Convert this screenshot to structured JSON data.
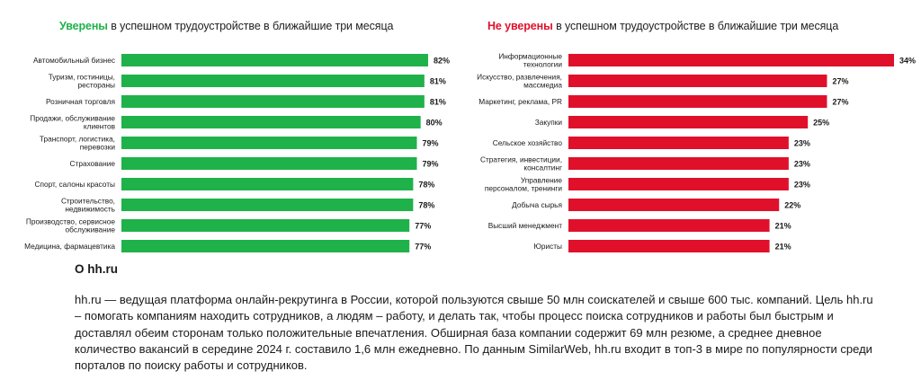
{
  "chart_data": [
    {
      "type": "bar",
      "orientation": "horizontal",
      "title_accent": "Уверены",
      "title_rest": "в успешном трудоустройстве в ближайшие три месяца",
      "categories": [
        [
          "Автомобильный бизнес"
        ],
        [
          "Туризм, гостиницы,",
          "рестораны"
        ],
        [
          "Розничная торговля"
        ],
        [
          "Продажи, обслуживание",
          "клиентов"
        ],
        [
          "Транспорт, логистика,",
          "перевозки"
        ],
        [
          "Страхование"
        ],
        [
          "Спорт, салоны красоты"
        ],
        [
          "Строительство,",
          "недвижимость"
        ],
        [
          "Производство, сервисное",
          "обслуживание"
        ],
        [
          "Медицина, фармацевтика"
        ]
      ],
      "values": [
        82,
        81,
        81,
        80,
        79,
        79,
        78,
        78,
        77,
        77
      ],
      "value_labels": [
        "82%",
        "81%",
        "81%",
        "80%",
        "79%",
        "79%",
        "78%",
        "78%",
        "77%",
        "77%"
      ],
      "color": "#1fb24a",
      "xlim": [
        0,
        82
      ]
    },
    {
      "type": "bar",
      "orientation": "horizontal",
      "title_accent": "Не уверены",
      "title_rest": "в успешном трудоустройстве в ближайшие три месяца",
      "categories": [
        [
          "Информационные",
          "технологии"
        ],
        [
          "Искусство, развлечения,",
          "массмедиа"
        ],
        [
          "Маркетинг, реклама, PR"
        ],
        [
          "Закупки"
        ],
        [
          "Сельское хозяйство"
        ],
        [
          "Стратегия, инвестиции,",
          "консалтинг"
        ],
        [
          "Управление",
          "персоналом, тренинги"
        ],
        [
          "Добыча сырья"
        ],
        [
          "Высший менеджмент"
        ],
        [
          "Юристы"
        ]
      ],
      "values": [
        34,
        27,
        27,
        25,
        23,
        23,
        23,
        22,
        21,
        21
      ],
      "value_labels": [
        "34%",
        "27%",
        "27%",
        "25%",
        "23%",
        "23%",
        "23%",
        "22%",
        "21%",
        "21%"
      ],
      "color": "#e0102b",
      "xlim": [
        0,
        34
      ]
    }
  ],
  "about": {
    "heading": "О hh.ru",
    "text": "hh.ru — ведущая платформа онлайн-рекрутинга в России, которой пользуются свыше 50 млн соискателей и свыше 600 тыс. компаний. Цель hh.ru – помогать компаниям находить сотрудников, а людям – работу, и делать так, чтобы процесс поиска сотрудников и работы был быстрым и доставлял обеим сторонам только положительные впечатления. Обширная база компании содержит 69 млн резюме, а среднее дневное количество вакансий в середине 2024 г. составило 1,6 млн ежедневно. По данным SimilarWeb, hh.ru входит в топ-3 в мире по популярности среди порталов по поиску работы и сотрудников."
  }
}
